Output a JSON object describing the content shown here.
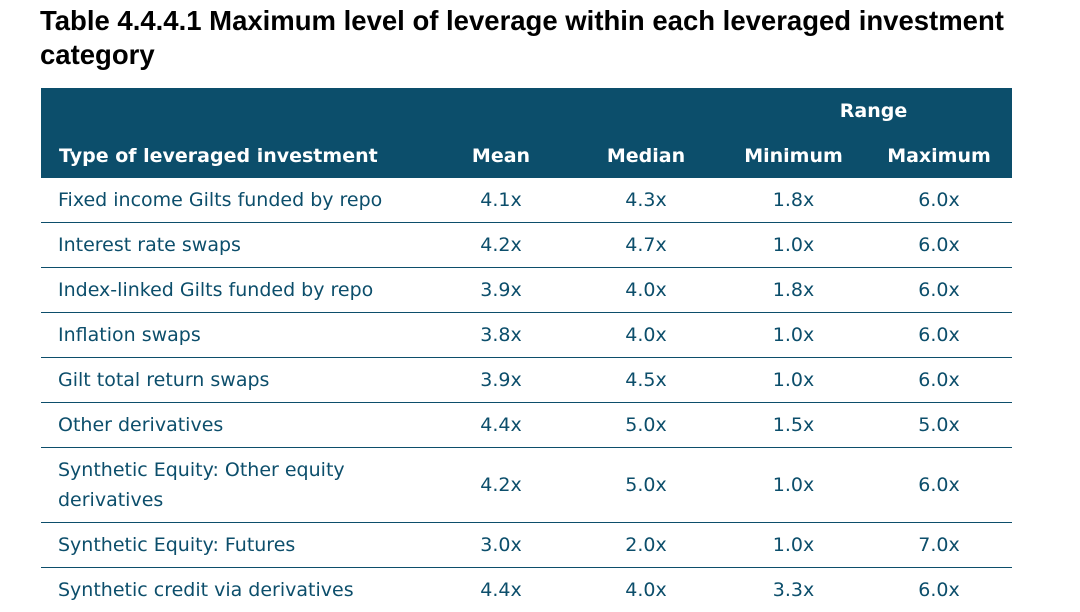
{
  "title": "Table 4.4.4.1 Maximum level of leverage within each leveraged investment category",
  "table": {
    "group_header": "Range",
    "headers": {
      "type": "Type of leveraged investment",
      "mean": "Mean",
      "median": "Median",
      "minimum": "Minimum",
      "maximum": "Maximum"
    },
    "rows": [
      {
        "type": "Fixed income Gilts funded by repo",
        "mean": "4.1x",
        "median": "4.3x",
        "minimum": "1.8x",
        "maximum": "6.0x"
      },
      {
        "type": "Interest rate swaps",
        "mean": "4.2x",
        "median": "4.7x",
        "minimum": "1.0x",
        "maximum": "6.0x"
      },
      {
        "type": "Index-linked Gilts funded by repo",
        "mean": "3.9x",
        "median": "4.0x",
        "minimum": "1.8x",
        "maximum": "6.0x"
      },
      {
        "type": "Inflation swaps",
        "mean": "3.8x",
        "median": "4.0x",
        "minimum": "1.0x",
        "maximum": "6.0x"
      },
      {
        "type": "Gilt total return swaps",
        "mean": "3.9x",
        "median": "4.5x",
        "minimum": "1.0x",
        "maximum": "6.0x"
      },
      {
        "type": "Other derivatives",
        "mean": "4.4x",
        "median": "5.0x",
        "minimum": "1.5x",
        "maximum": "5.0x"
      },
      {
        "type": "Synthetic Equity: Other equity derivatives",
        "mean": "4.2x",
        "median": "5.0x",
        "minimum": "1.0x",
        "maximum": "6.0x"
      },
      {
        "type": "Synthetic Equity: Futures",
        "mean": "3.0x",
        "median": "2.0x",
        "minimum": "1.0x",
        "maximum": "7.0x"
      },
      {
        "type": "Synthetic credit via derivatives",
        "mean": "4.4x",
        "median": "4.0x",
        "minimum": "3.3x",
        "maximum": "6.0x"
      }
    ]
  },
  "colors": {
    "header_bg": "#0c4e6b",
    "header_text": "#ffffff",
    "body_text": "#0c4e6b",
    "rule": "#0c4e6b"
  }
}
